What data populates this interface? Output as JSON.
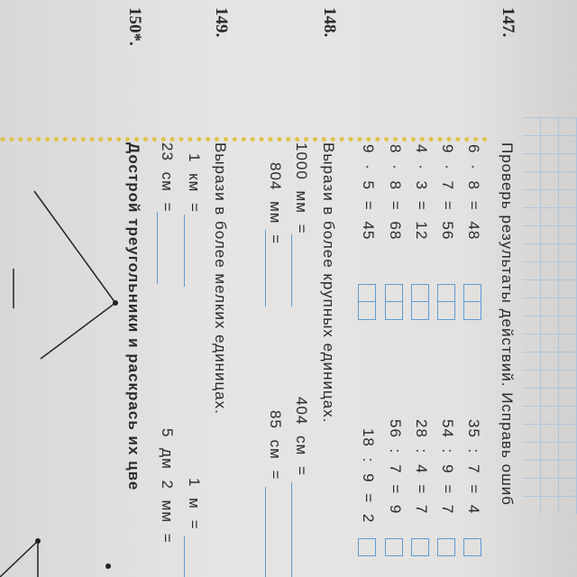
{
  "ex147": {
    "number": "147.",
    "title": "Проверь результаты действий. Исправь ошиб",
    "left": [
      "6 · 8 = 48",
      "9 · 7 = 56",
      "4 · 3 = 12",
      "8 · 8 = 68",
      "9 · 5 = 45"
    ],
    "right": [
      "35 : 7 = 4",
      "54 : 9 = 7",
      "28 : 4 = 7",
      "56 : 7 = 9",
      "18 : 9 = 2"
    ]
  },
  "ex148": {
    "number": "148.",
    "title": "Вырази в более крупных единицах.",
    "items": [
      "1000 мм =",
      "804 мм =",
      "404 см =",
      "85 см ="
    ]
  },
  "ex149": {
    "number": "149.",
    "title": "Вырази в более мелких единицах.",
    "items": [
      "1 км =",
      "23 см =",
      "1 м =",
      "5 дм 2 мм ="
    ]
  },
  "ex150": {
    "number": "150*.",
    "title": "Дострой треугольники и раскрась их цве"
  },
  "colors": {
    "box": "#5a9bd8",
    "dots": "#e2c24a",
    "text": "#2a2a2c"
  }
}
